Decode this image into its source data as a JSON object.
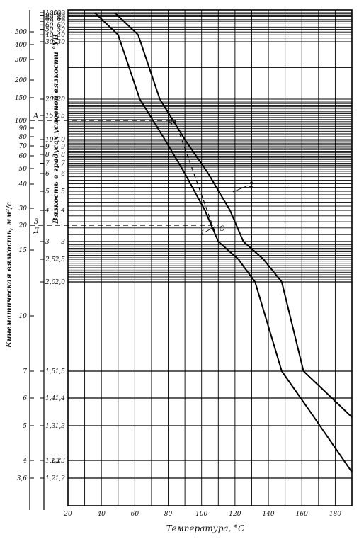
{
  "chart_data": {
    "type": "line",
    "title": "",
    "xlabel": "Температура, °С",
    "ylabel_left": "Кинематическая вязкость, мм²/с",
    "ylabel_right": "Вязкость в градусах условной вязкости °УВ",
    "xlim": [
      20,
      190
    ],
    "x_ticks": [
      "20",
      "40",
      "60",
      "80",
      "100",
      "120",
      "140",
      "160",
      "180"
    ],
    "y_kinematic_ticks": [
      "500",
      "400",
      "300",
      "200",
      "150",
      "100",
      "90",
      "80",
      "70",
      "60",
      "50",
      "40",
      "30",
      "20",
      "15",
      "10",
      "7",
      "6",
      "5",
      "4",
      "3,6"
    ],
    "y_engler_ticks": [
      "100",
      "90",
      "80",
      "70",
      "60",
      "50",
      "40",
      "30",
      "20",
      "15",
      "10",
      "9",
      "8",
      "7",
      "6",
      "5",
      "4",
      "3",
      "2,5",
      "2,0",
      "1,5",
      "1,4",
      "1,3",
      "1,23",
      "1,2"
    ],
    "y_engler_ticks_grid": [
      "100",
      "90",
      "80",
      "70",
      "60",
      "50",
      "40",
      "30",
      "20",
      "15",
      "10",
      "9",
      "8",
      "7",
      "6",
      "5",
      "4",
      "3",
      "2,5",
      "2,0",
      "1,5",
      "1,4",
      "1,3",
      "1,23",
      "1,2"
    ],
    "series": [
      {
        "name": "1",
        "points": [
          [
            36,
            100
          ],
          [
            50,
            40
          ],
          [
            63,
            20
          ],
          [
            78,
            10
          ],
          [
            90,
            6
          ],
          [
            102,
            4
          ],
          [
            110,
            3
          ],
          [
            122,
            2.5
          ],
          [
            132,
            2.0
          ],
          [
            148,
            1.5
          ],
          [
            165,
            1.35
          ],
          [
            190,
            1.21
          ]
        ]
      },
      {
        "name": "2",
        "points": [
          [
            48,
            100
          ],
          [
            62,
            40
          ],
          [
            75,
            20
          ],
          [
            90,
            10
          ],
          [
            104,
            6
          ],
          [
            117,
            4
          ],
          [
            125,
            3
          ],
          [
            137,
            2.5
          ],
          [
            148,
            2.0
          ],
          [
            161,
            1.5
          ],
          [
            178,
            1.4
          ],
          [
            190,
            1.33
          ]
        ]
      }
    ],
    "annotations": [
      {
        "label": "A",
        "y_kinematic": 100
      },
      {
        "label": "B",
        "x": 84,
        "y_engler": 13
      },
      {
        "label": "C",
        "x": 108,
        "y_engler": 3
      },
      {
        "label": "Д",
        "y_kinematic": 20
      },
      {
        "label": "3",
        "y_kinematic": 20
      }
    ],
    "grid": true
  }
}
